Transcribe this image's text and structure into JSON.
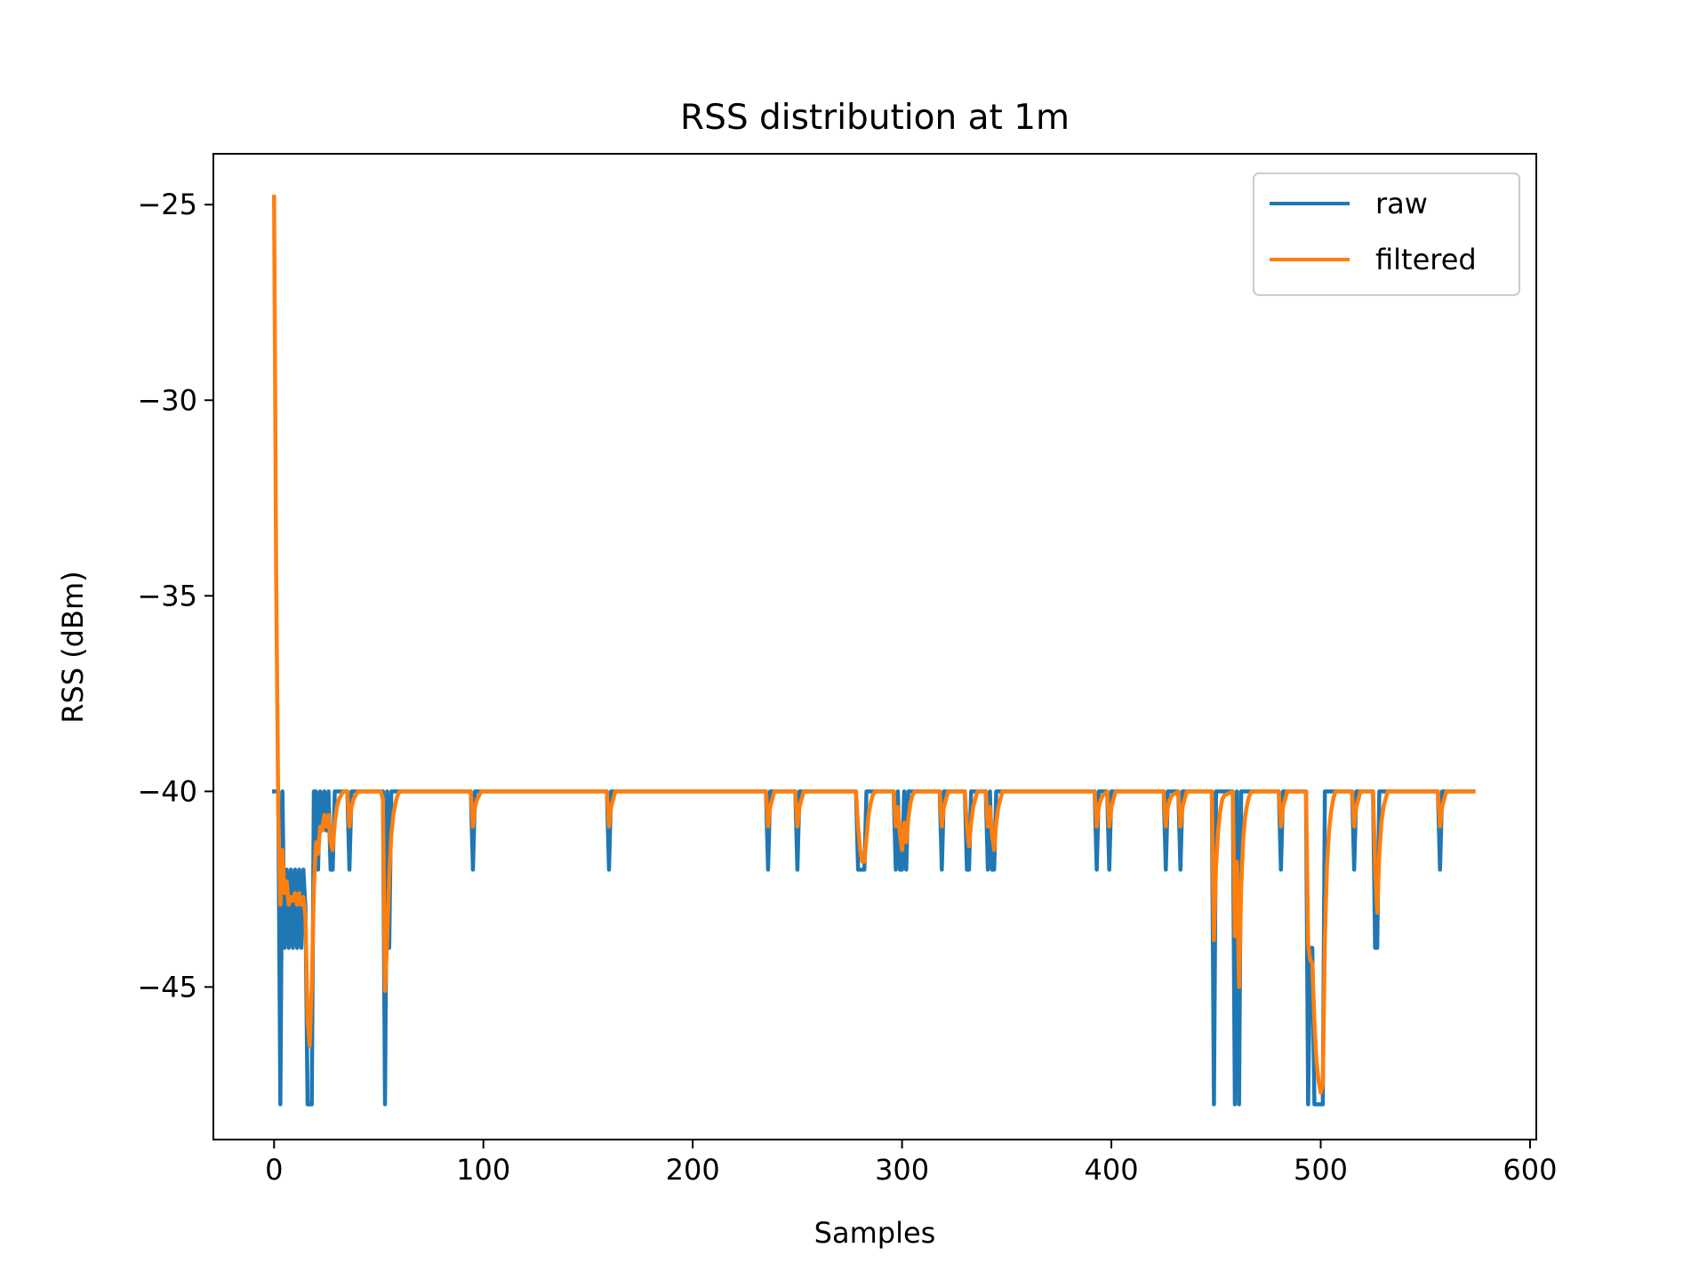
{
  "chart_data": {
    "type": "line",
    "title": "RSS distribution at 1m",
    "xlabel": "Samples",
    "ylabel": "RSS (dBm)",
    "xlim": [
      -29,
      603
    ],
    "ylim": [
      -48.9,
      -23.7
    ],
    "xticks": [
      0,
      100,
      200,
      300,
      400,
      500,
      600
    ],
    "yticks": [
      -25,
      -30,
      -35,
      -40,
      -45
    ],
    "xtick_labels": [
      "0",
      "100",
      "200",
      "300",
      "400",
      "500",
      "600"
    ],
    "ytick_labels": [
      "−25",
      "−30",
      "−35",
      "−40",
      "−45"
    ],
    "grid": false,
    "legend": "top-right",
    "series": [
      {
        "name": "raw",
        "color": "#1f77b4",
        "values": [
          [
            0,
            -40
          ],
          [
            1,
            -40
          ],
          [
            2,
            -40
          ],
          [
            3,
            -48
          ],
          [
            4,
            -40
          ],
          [
            5,
            -44
          ],
          [
            6,
            -42
          ],
          [
            7,
            -44
          ],
          [
            8,
            -42
          ],
          [
            9,
            -44
          ],
          [
            10,
            -42
          ],
          [
            11,
            -44
          ],
          [
            12,
            -42
          ],
          [
            13,
            -44
          ],
          [
            14,
            -42
          ],
          [
            15,
            -43
          ],
          [
            16,
            -48
          ],
          [
            17,
            -48
          ],
          [
            18,
            -48
          ],
          [
            19,
            -40
          ],
          [
            20,
            -40
          ],
          [
            21,
            -42
          ],
          [
            22,
            -40
          ],
          [
            23,
            -41
          ],
          [
            24,
            -40
          ],
          [
            25,
            -41
          ],
          [
            26,
            -40
          ],
          [
            27,
            -42
          ],
          [
            28,
            -42
          ],
          [
            29,
            -40
          ],
          [
            30,
            -40
          ],
          [
            31,
            -40
          ],
          [
            32,
            -40
          ],
          [
            33,
            -40
          ],
          [
            34,
            -40
          ],
          [
            35,
            -40
          ],
          [
            36,
            -42
          ],
          [
            37,
            -40
          ],
          [
            38,
            -40
          ],
          [
            52,
            -40
          ],
          [
            53,
            -48
          ],
          [
            54,
            -40
          ],
          [
            55,
            -44
          ],
          [
            56,
            -40
          ],
          [
            94,
            -40
          ],
          [
            95,
            -42
          ],
          [
            96,
            -40
          ],
          [
            159,
            -40
          ],
          [
            160,
            -42
          ],
          [
            161,
            -40
          ],
          [
            235,
            -40
          ],
          [
            236,
            -42
          ],
          [
            237,
            -40
          ],
          [
            249,
            -40
          ],
          [
            250,
            -42
          ],
          [
            251,
            -40
          ],
          [
            278,
            -40
          ],
          [
            279,
            -42
          ],
          [
            280,
            -42
          ],
          [
            281,
            -42
          ],
          [
            282,
            -42
          ],
          [
            283,
            -40
          ],
          [
            296,
            -40
          ],
          [
            297,
            -42
          ],
          [
            298,
            -40
          ],
          [
            299,
            -42
          ],
          [
            300,
            -42
          ],
          [
            301,
            -40
          ],
          [
            302,
            -42
          ],
          [
            303,
            -40
          ],
          [
            318,
            -40
          ],
          [
            319,
            -42
          ],
          [
            320,
            -40
          ],
          [
            330,
            -40
          ],
          [
            331,
            -42
          ],
          [
            332,
            -42
          ],
          [
            333,
            -40
          ],
          [
            340,
            -40
          ],
          [
            341,
            -42
          ],
          [
            342,
            -40
          ],
          [
            343,
            -42
          ],
          [
            344,
            -42
          ],
          [
            345,
            -40
          ],
          [
            392,
            -40
          ],
          [
            393,
            -42
          ],
          [
            394,
            -40
          ],
          [
            398,
            -40
          ],
          [
            399,
            -42
          ],
          [
            400,
            -40
          ],
          [
            425,
            -40
          ],
          [
            426,
            -42
          ],
          [
            427,
            -40
          ],
          [
            432,
            -40
          ],
          [
            433,
            -42
          ],
          [
            434,
            -40
          ],
          [
            448,
            -40
          ],
          [
            449,
            -48
          ],
          [
            450,
            -40
          ],
          [
            458,
            -40
          ],
          [
            459,
            -48
          ],
          [
            460,
            -40
          ],
          [
            461,
            -48
          ],
          [
            462,
            -40
          ],
          [
            480,
            -40
          ],
          [
            481,
            -42
          ],
          [
            482,
            -40
          ],
          [
            493,
            -40
          ],
          [
            494,
            -48
          ],
          [
            495,
            -44
          ],
          [
            496,
            -44
          ],
          [
            497,
            -48
          ],
          [
            498,
            -48
          ],
          [
            499,
            -48
          ],
          [
            500,
            -48
          ],
          [
            501,
            -48
          ],
          [
            502,
            -40
          ],
          [
            515,
            -40
          ],
          [
            516,
            -42
          ],
          [
            517,
            -40
          ],
          [
            525,
            -40
          ],
          [
            526,
            -44
          ],
          [
            527,
            -44
          ],
          [
            528,
            -40
          ],
          [
            556,
            -40
          ],
          [
            557,
            -42
          ],
          [
            558,
            -40
          ],
          [
            573,
            -40
          ]
        ]
      },
      {
        "name": "filtered",
        "color": "#ff7f0e",
        "values": [
          [
            0,
            -24.8
          ],
          [
            1,
            -34.5
          ],
          [
            2,
            -40.5
          ],
          [
            3,
            -42.9
          ],
          [
            4,
            -41.5
          ],
          [
            5,
            -42.6
          ],
          [
            6,
            -42.3
          ],
          [
            7,
            -42.9
          ],
          [
            8,
            -42.7
          ],
          [
            9,
            -42.8
          ],
          [
            10,
            -42.6
          ],
          [
            11,
            -42.9
          ],
          [
            12,
            -42.6
          ],
          [
            13,
            -42.9
          ],
          [
            14,
            -42.7
          ],
          [
            15,
            -43.2
          ],
          [
            16,
            -45.8
          ],
          [
            17,
            -46.5
          ],
          [
            18,
            -45
          ],
          [
            19,
            -42.5
          ],
          [
            20,
            -41.3
          ],
          [
            21,
            -41.6
          ],
          [
            22,
            -40.9
          ],
          [
            23,
            -41
          ],
          [
            24,
            -40.6
          ],
          [
            25,
            -40.9
          ],
          [
            26,
            -40.6
          ],
          [
            27,
            -41.3
          ],
          [
            28,
            -41.5
          ],
          [
            29,
            -40.8
          ],
          [
            30,
            -40.4
          ],
          [
            31,
            -40.2
          ],
          [
            32,
            -40.1
          ],
          [
            33,
            -40
          ],
          [
            35,
            -40
          ],
          [
            36,
            -40.9
          ],
          [
            37,
            -40.4
          ],
          [
            38,
            -40.2
          ],
          [
            39,
            -40.1
          ],
          [
            40,
            -40
          ],
          [
            51,
            -40
          ],
          [
            52,
            -40.2
          ],
          [
            53,
            -45.1
          ],
          [
            54,
            -43.8
          ],
          [
            55,
            -42.2
          ],
          [
            56,
            -41.1
          ],
          [
            57,
            -40.6
          ],
          [
            58,
            -40.3
          ],
          [
            59,
            -40.1
          ],
          [
            60,
            -40
          ],
          [
            94,
            -40
          ],
          [
            95,
            -40.9
          ],
          [
            96,
            -40.4
          ],
          [
            97,
            -40.2
          ],
          [
            98,
            -40.1
          ],
          [
            99,
            -40
          ],
          [
            159,
            -40
          ],
          [
            160,
            -40.9
          ],
          [
            161,
            -40.4
          ],
          [
            162,
            -40.2
          ],
          [
            163,
            -40
          ],
          [
            235,
            -40
          ],
          [
            236,
            -40.9
          ],
          [
            237,
            -40.4
          ],
          [
            238,
            -40.2
          ],
          [
            239,
            -40
          ],
          [
            249,
            -40
          ],
          [
            250,
            -40.9
          ],
          [
            251,
            -40.4
          ],
          [
            252,
            -40.2
          ],
          [
            253,
            -40
          ],
          [
            278,
            -40
          ],
          [
            279,
            -40.9
          ],
          [
            280,
            -41.5
          ],
          [
            281,
            -41.8
          ],
          [
            282,
            -41.8
          ],
          [
            283,
            -41.2
          ],
          [
            284,
            -40.6
          ],
          [
            285,
            -40.3
          ],
          [
            286,
            -40.1
          ],
          [
            287,
            -40
          ],
          [
            296,
            -40
          ],
          [
            297,
            -40.9
          ],
          [
            298,
            -40.4
          ],
          [
            299,
            -41.1
          ],
          [
            300,
            -41.5
          ],
          [
            301,
            -40.8
          ],
          [
            302,
            -41.3
          ],
          [
            303,
            -40.7
          ],
          [
            304,
            -40.3
          ],
          [
            305,
            -40.1
          ],
          [
            306,
            -40
          ],
          [
            318,
            -40
          ],
          [
            319,
            -40.9
          ],
          [
            320,
            -40.4
          ],
          [
            321,
            -40.2
          ],
          [
            322,
            -40
          ],
          [
            330,
            -40
          ],
          [
            331,
            -40.9
          ],
          [
            332,
            -41.4
          ],
          [
            333,
            -40.8
          ],
          [
            334,
            -40.4
          ],
          [
            335,
            -40.2
          ],
          [
            336,
            -40
          ],
          [
            340,
            -40
          ],
          [
            341,
            -40.9
          ],
          [
            342,
            -40.4
          ],
          [
            343,
            -41.1
          ],
          [
            344,
            -41.5
          ],
          [
            345,
            -40.8
          ],
          [
            346,
            -40.4
          ],
          [
            347,
            -40.2
          ],
          [
            348,
            -40
          ],
          [
            392,
            -40
          ],
          [
            393,
            -40.9
          ],
          [
            394,
            -40.4
          ],
          [
            395,
            -40.2
          ],
          [
            396,
            -40.1
          ],
          [
            398,
            -40
          ],
          [
            399,
            -40.9
          ],
          [
            400,
            -40.4
          ],
          [
            401,
            -40.2
          ],
          [
            402,
            -40
          ],
          [
            425,
            -40
          ],
          [
            426,
            -40.9
          ],
          [
            427,
            -40.4
          ],
          [
            428,
            -40.2
          ],
          [
            429,
            -40.1
          ],
          [
            432,
            -40
          ],
          [
            433,
            -40.9
          ],
          [
            434,
            -40.4
          ],
          [
            435,
            -40.2
          ],
          [
            436,
            -40
          ],
          [
            448,
            -40
          ],
          [
            449,
            -43.8
          ],
          [
            450,
            -41.9
          ],
          [
            451,
            -41
          ],
          [
            452,
            -40.5
          ],
          [
            453,
            -40.2
          ],
          [
            454,
            -40.1
          ],
          [
            458,
            -40
          ],
          [
            459,
            -43.7
          ],
          [
            460,
            -41.8
          ],
          [
            461,
            -45
          ],
          [
            462,
            -42.5
          ],
          [
            463,
            -41.2
          ],
          [
            464,
            -40.6
          ],
          [
            465,
            -40.3
          ],
          [
            466,
            -40.1
          ],
          [
            467,
            -40
          ],
          [
            480,
            -40
          ],
          [
            481,
            -40.9
          ],
          [
            482,
            -40.4
          ],
          [
            483,
            -40.2
          ],
          [
            484,
            -40
          ],
          [
            493,
            -40
          ],
          [
            494,
            -43.9
          ],
          [
            495,
            -44.3
          ],
          [
            496,
            -44.4
          ],
          [
            497,
            -45.9
          ],
          [
            498,
            -46.9
          ],
          [
            499,
            -47.4
          ],
          [
            500,
            -47.7
          ],
          [
            501,
            -47.5
          ],
          [
            502,
            -43.8
          ],
          [
            503,
            -41.9
          ],
          [
            504,
            -41
          ],
          [
            505,
            -40.5
          ],
          [
            506,
            -40.2
          ],
          [
            507,
            -40
          ],
          [
            515,
            -40
          ],
          [
            516,
            -40.9
          ],
          [
            517,
            -40.4
          ],
          [
            518,
            -40.2
          ],
          [
            519,
            -40
          ],
          [
            525,
            -40
          ],
          [
            526,
            -41.9
          ],
          [
            527,
            -43.1
          ],
          [
            528,
            -41.6
          ],
          [
            529,
            -40.8
          ],
          [
            530,
            -40.4
          ],
          [
            531,
            -40.2
          ],
          [
            532,
            -40
          ],
          [
            556,
            -40
          ],
          [
            557,
            -40.9
          ],
          [
            558,
            -40.4
          ],
          [
            559,
            -40.2
          ],
          [
            560,
            -40
          ],
          [
            573,
            -40
          ]
        ]
      }
    ]
  }
}
